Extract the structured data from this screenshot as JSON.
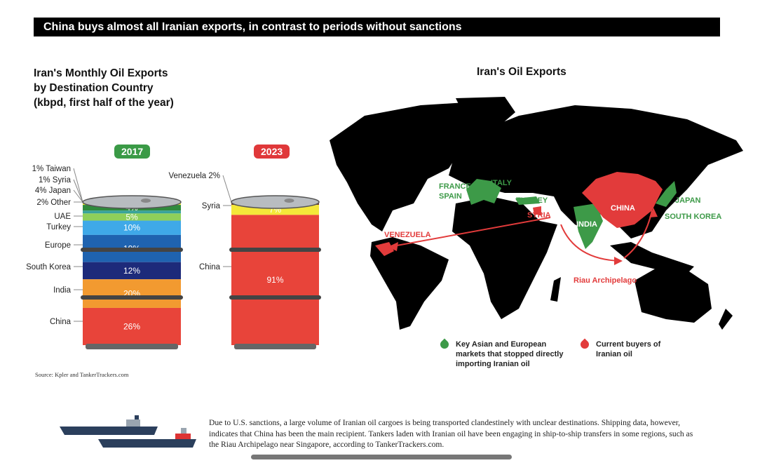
{
  "title": "China buys almost all Iranian exports, in contrast to periods without sanctions",
  "left_heading": [
    "Iran's Monthly Oil Exports",
    "by Destination Country",
    "(kbpd, first half of the year)"
  ],
  "map_title": "Iran's Oil Exports",
  "chart_data": {
    "type": "bar",
    "subtype": "stacked-barrel",
    "title": "Iran's Monthly Oil Exports by Destination Country (kbpd, first half of the year)",
    "unit": "%",
    "barrels": [
      {
        "year": "2017",
        "color": "#3a9a46",
        "segments": [
          {
            "name": "Taiwan",
            "value": 1,
            "side_label": "1% Taiwan",
            "color": "#4a5a3a"
          },
          {
            "name": "Syria",
            "value": 1,
            "side_label": "1%   Syria",
            "color": "#f2e53a"
          },
          {
            "name": "Japan",
            "value": 4,
            "side_label": "4%  Japan",
            "inner_label": "4%",
            "color": "#2f8a3c"
          },
          {
            "name": "Other",
            "value": 2,
            "side_label": "2%  Other",
            "color": "#3aa39a"
          },
          {
            "name": "UAE",
            "value": 5,
            "side_label": "UAE",
            "inner_label": "5%",
            "color": "#8fcf5a"
          },
          {
            "name": "Turkey",
            "value": 10,
            "side_label": "Turkey",
            "inner_label": "10%",
            "color": "#3fa9e8"
          },
          {
            "name": "Europe",
            "value": 19,
            "side_label": "Europe",
            "inner_label": "19%",
            "color": "#1f63b0"
          },
          {
            "name": "South Korea",
            "value": 12,
            "side_label": "South Korea",
            "inner_label": "12%",
            "color": "#1d2a7a"
          },
          {
            "name": "India",
            "value": 20,
            "side_label": "India",
            "inner_label": "20%",
            "color": "#f29a30"
          },
          {
            "name": "China",
            "value": 26,
            "side_label": "China",
            "inner_label": "26%",
            "color": "#e8443a"
          }
        ]
      },
      {
        "year": "2023",
        "color": "#e0383a",
        "segments": [
          {
            "name": "Venezuela",
            "value": 2,
            "side_label": "Venezuela 2%",
            "color": "#7a3a2a"
          },
          {
            "name": "Syria",
            "value": 7,
            "side_label": "Syria",
            "inner_label": "7%",
            "color": "#f4e83a"
          },
          {
            "name": "China",
            "value": 91,
            "side_label": "China",
            "inner_label": "91%",
            "color": "#e8443a"
          }
        ]
      }
    ]
  },
  "map": {
    "green_labels": [
      "FRANCE",
      "SPAIN",
      "ITALY",
      "TURKEY",
      "INDIA",
      "JAPAN",
      "SOUTH KOREA"
    ],
    "red_labels": [
      "CHINA",
      "SYRIA",
      "VENEZUELA",
      "Riau Archipelago"
    ],
    "colors": {
      "green": "#3d9a48",
      "red": "#e23b3b",
      "land": "#000000"
    }
  },
  "legend": {
    "green": "Key Asian and European markets that stopped directly importing Iranian oil",
    "red": "Current buyers of Iranian oil"
  },
  "source": "Source: Kpler and TankerTrackers.com",
  "paragraph": "Due to U.S. sanctions, a large volume of Iranian oil cargoes is being transported clandestinely with unclear destinations. Shipping data, however, indicates that China has been the main recipient. Tankers laden with Iranian oil have been engaging in ship-to-ship transfers in some regions, such as the Riau Archipelago near Singapore, according to TankerTrackers.com."
}
